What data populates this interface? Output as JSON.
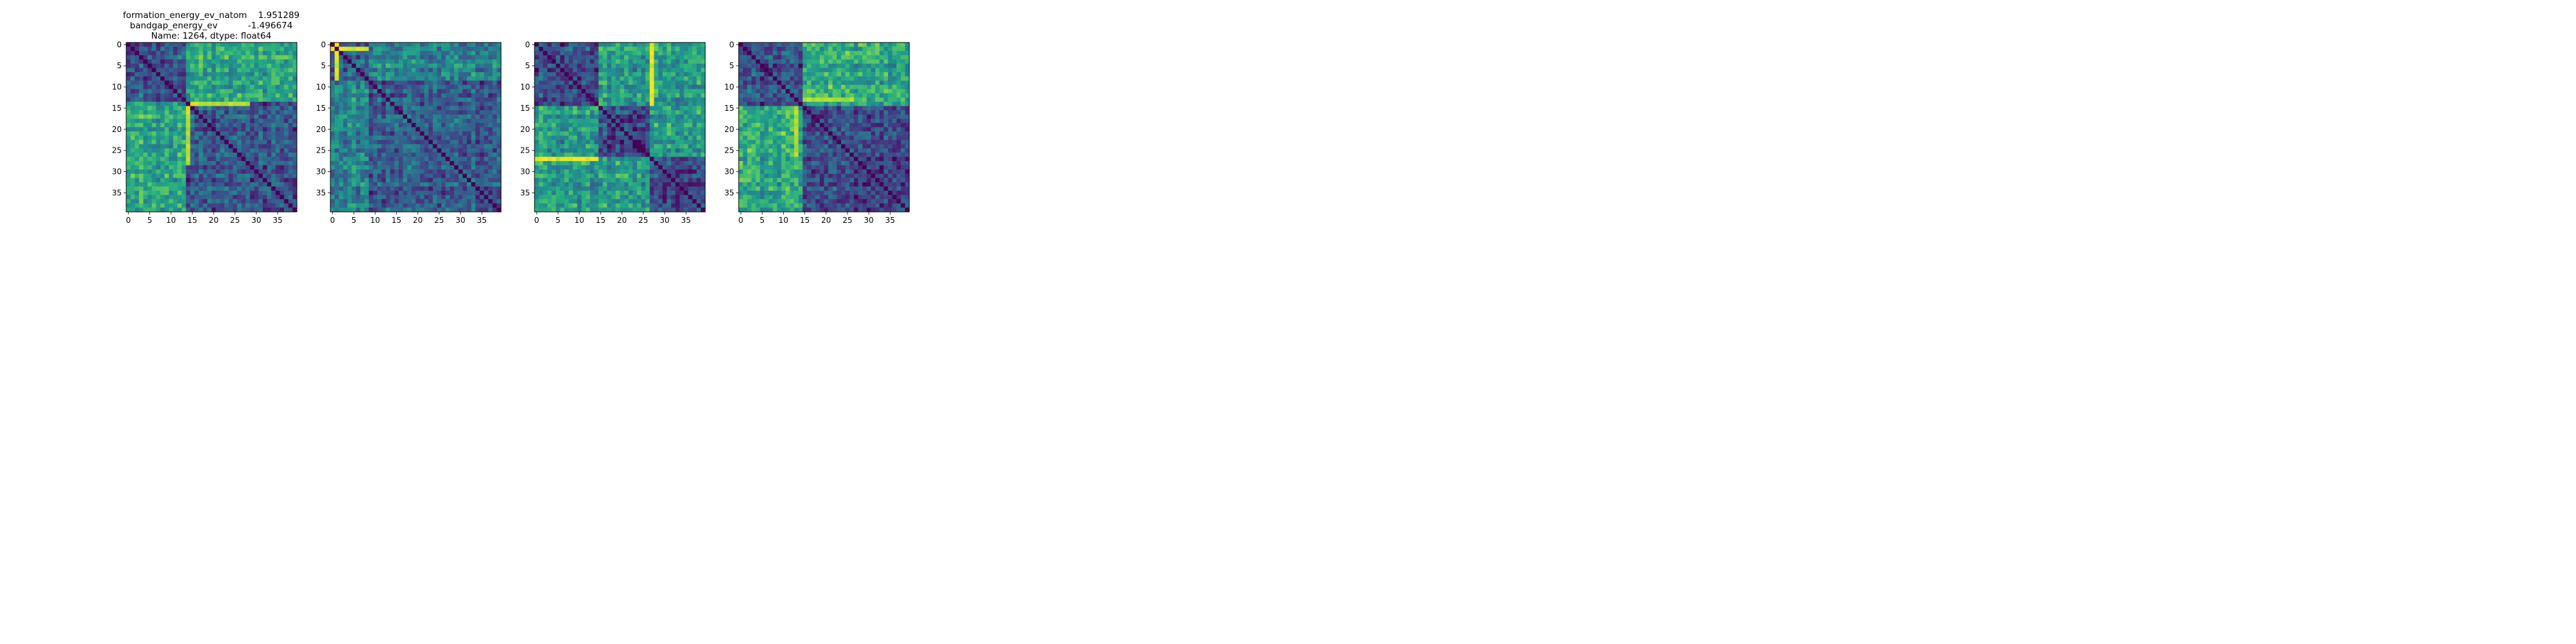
{
  "chart_data": [
    {
      "type": "heatmap",
      "title_lines": [
        "formation_energy_ev_natom    1.951289",
        "bandgap_energy_ev           -1.496674",
        "Name: 1264, dtype: float64"
      ],
      "n": 40,
      "colormap": "viridis",
      "xticks": [
        0,
        5,
        10,
        15,
        20,
        25,
        30,
        35
      ],
      "yticks": [
        0,
        5,
        10,
        15,
        20,
        25,
        30,
        35
      ],
      "blocks": [
        [
          0,
          14
        ],
        [
          14,
          40
        ]
      ],
      "cross_block_level": 0.6,
      "within_block_level": 0.28,
      "hot_row": 14,
      "hot_row_range": [
        14,
        29
      ],
      "hot_level": 0.9
    },
    {
      "type": "heatmap",
      "title_lines": [],
      "n": 40,
      "colormap": "viridis",
      "xticks": [
        0,
        5,
        10,
        15,
        20,
        25,
        30,
        35
      ],
      "yticks": [
        0,
        5,
        10,
        15,
        20,
        25,
        30,
        35
      ],
      "blocks": [
        [
          0,
          9
        ],
        [
          9,
          40
        ]
      ],
      "cross_block_level": 0.45,
      "within_block_level": 0.3,
      "hot_row": 1,
      "hot_row_range": [
        0,
        9
      ],
      "hot_level": 0.95
    },
    {
      "type": "heatmap",
      "title_lines": [],
      "n": 40,
      "colormap": "viridis",
      "xticks": [
        0,
        5,
        10,
        15,
        20,
        25,
        30,
        35
      ],
      "yticks": [
        0,
        5,
        10,
        15,
        20,
        25,
        30,
        35
      ],
      "blocks": [
        [
          0,
          15
        ],
        [
          15,
          27
        ],
        [
          27,
          40
        ]
      ],
      "cross_block_level": 0.55,
      "within_block_level": 0.22,
      "hot_row": 27,
      "hot_row_range": [
        0,
        15
      ],
      "hot_level": 0.95
    },
    {
      "type": "heatmap",
      "title_lines": [],
      "n": 40,
      "colormap": "viridis",
      "xticks": [
        0,
        5,
        10,
        15,
        20,
        25,
        30,
        35
      ],
      "yticks": [
        0,
        5,
        10,
        15,
        20,
        25,
        30,
        35
      ],
      "blocks": [
        [
          0,
          15
        ],
        [
          15,
          40
        ]
      ],
      "cross_block_level": 0.62,
      "within_block_level": 0.25,
      "hot_row": 13,
      "hot_row_range": [
        15,
        27
      ],
      "hot_level": 0.88
    }
  ]
}
